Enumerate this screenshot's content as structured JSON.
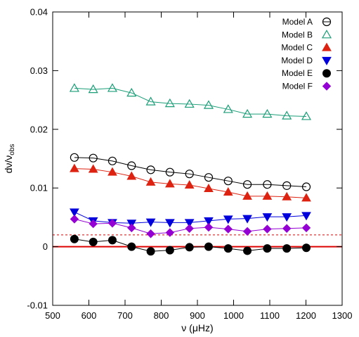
{
  "chart_data": {
    "type": "line",
    "xlabel": "ν (μHz)",
    "ylabel": "dν/ν",
    "ylabel_sub": "obs",
    "xlim": [
      500,
      1300
    ],
    "ylim": [
      -0.01,
      0.04
    ],
    "xticks": [
      500,
      600,
      700,
      800,
      900,
      1000,
      1100,
      1200,
      1300
    ],
    "yticks": [
      -0.01,
      0,
      0.01,
      0.02,
      0.03,
      0.04
    ],
    "xtick_labels": [
      "500",
      "600",
      "700",
      "800",
      "900",
      "1000",
      "1100",
      "1200",
      "1300"
    ],
    "ytick_labels": [
      "-0.01",
      "0",
      "0.01",
      "0.02",
      "0.03",
      "0.04"
    ],
    "legend_position": "top-right",
    "x": [
      560,
      612,
      665,
      718,
      771,
      824,
      878,
      931,
      985,
      1038,
      1093,
      1147,
      1201
    ],
    "series": [
      {
        "name": "Model A",
        "marker": "open-circle",
        "color": "#000000",
        "values": [
          0.0152,
          0.0151,
          0.0146,
          0.0138,
          0.0131,
          0.0127,
          0.0124,
          0.0118,
          0.0112,
          0.0106,
          0.0106,
          0.0104,
          0.0102
        ]
      },
      {
        "name": "Model B",
        "marker": "open-triangle",
        "color": "#1a9e77",
        "values": [
          0.027,
          0.0268,
          0.027,
          0.0262,
          0.0247,
          0.0244,
          0.0243,
          0.0241,
          0.0234,
          0.0226,
          0.0226,
          0.0223,
          0.0222
        ]
      },
      {
        "name": "Model C",
        "marker": "filled-triangle",
        "color": "#dd2211",
        "values": [
          0.0133,
          0.0132,
          0.0127,
          0.012,
          0.011,
          0.0107,
          0.0105,
          0.0099,
          0.0093,
          0.0086,
          0.0086,
          0.0085,
          0.0083
        ]
      },
      {
        "name": "Model D",
        "marker": "filled-down-triangle",
        "color": "#0000dd",
        "values": [
          0.0059,
          0.0044,
          0.0041,
          0.004,
          0.0042,
          0.0041,
          0.0041,
          0.0044,
          0.0047,
          0.0048,
          0.0051,
          0.0051,
          0.0053
        ]
      },
      {
        "name": "Model E",
        "marker": "filled-circle",
        "color": "#000000",
        "values": [
          0.0013,
          0.0008,
          0.0011,
          0.0,
          -0.0008,
          -0.0006,
          -0.0001,
          0.0,
          -0.0003,
          -0.0007,
          -0.0003,
          -0.0003,
          -0.0002
        ]
      },
      {
        "name": "Model F",
        "marker": "filled-diamond",
        "color": "#9400d3",
        "values": [
          0.0047,
          0.0039,
          0.004,
          0.0032,
          0.0022,
          0.0024,
          0.0031,
          0.0033,
          0.003,
          0.0026,
          0.003,
          0.0031,
          0.0032
        ]
      }
    ],
    "reference_lines": [
      {
        "y": 0,
        "style": "solid",
        "color": "#dd0000"
      },
      {
        "y": 0.002,
        "style": "dashed",
        "color": "#dd0000"
      }
    ]
  }
}
